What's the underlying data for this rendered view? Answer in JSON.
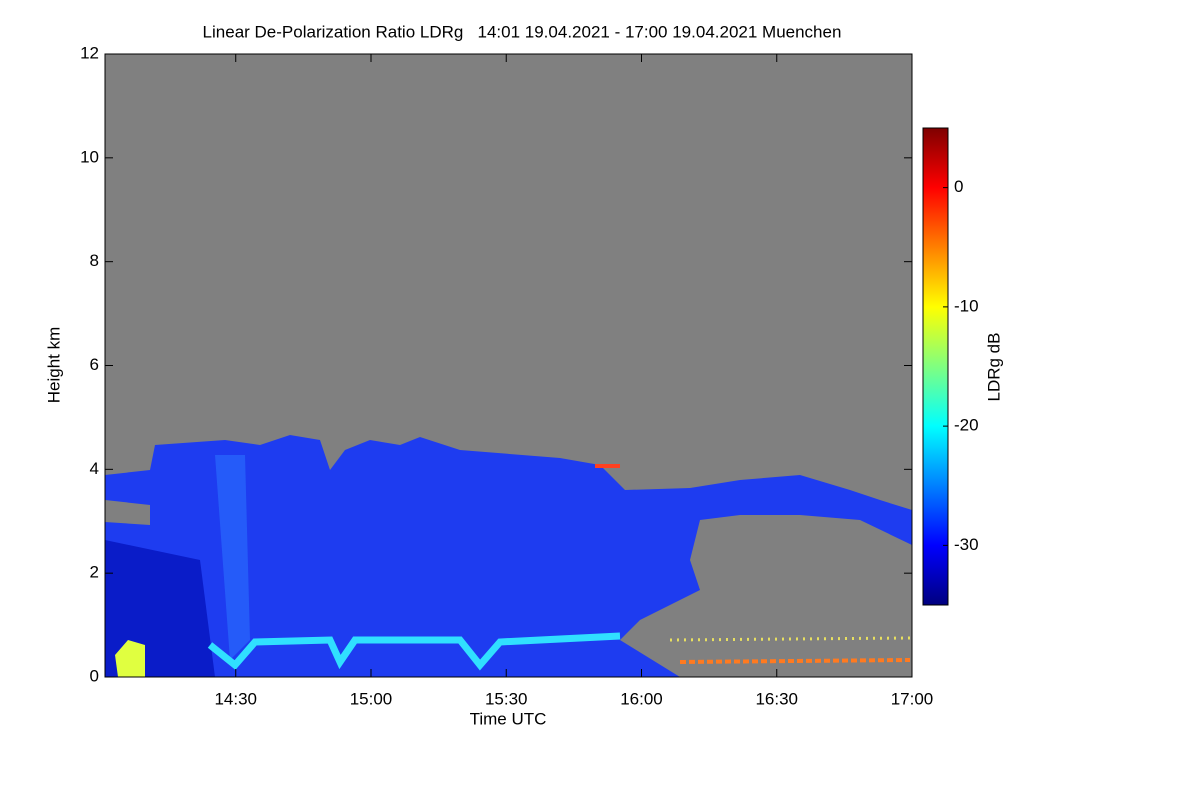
{
  "chart_data": {
    "type": "heatmap",
    "title": "Linear De-Polarization Ratio LDRg   14:01 19.04.2021 - 17:00 19.04.2021 Muenchen",
    "x_label": "Time UTC",
    "y_label": "Height km",
    "colorbar_label": "LDRg dB",
    "xlim": [
      14.0167,
      17.0
    ],
    "xticks": [
      {
        "value": 14.5,
        "label": "14:30"
      },
      {
        "value": 15,
        "label": "15:00"
      },
      {
        "value": 15.5,
        "label": "15:30"
      },
      {
        "value": 16,
        "label": "16:00"
      },
      {
        "value": 16.5,
        "label": "16:30"
      },
      {
        "value": 17,
        "label": "17:00"
      }
    ],
    "ylim": [
      0,
      12
    ],
    "yticks": [
      0,
      2,
      4,
      6,
      8,
      10,
      12
    ],
    "clim": [
      -35,
      5
    ],
    "cticks": [
      -30,
      -20,
      -10,
      0
    ],
    "colormap": [
      "#00007f",
      "#0000ff",
      "#0080ff",
      "#00ffff",
      "#80ff80",
      "#ffff00",
      "#ff8000",
      "#ff0000",
      "#7f0000"
    ],
    "background_color": "#808080"
  }
}
